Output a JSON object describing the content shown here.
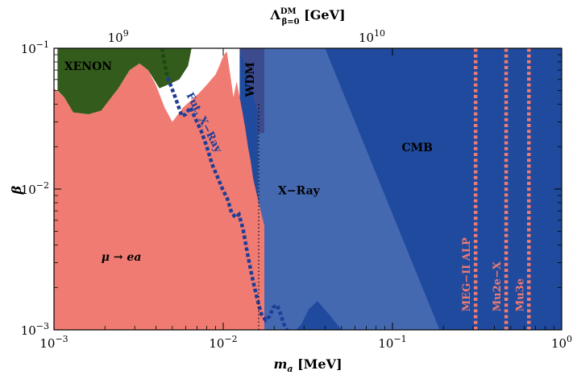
{
  "chart_data": {
    "type": "area",
    "x_axis": {
      "label": "m_a [MeV]",
      "label_main": "m",
      "label_sub": "a",
      "label_unit": " [MeV]",
      "scale": "log",
      "range": [
        0.001,
        1
      ],
      "ticks": [
        0.001,
        0.01,
        0.1,
        1
      ],
      "tick_labels": [
        {
          "base": "10",
          "exp": "−3"
        },
        {
          "base": "10",
          "exp": "−2"
        },
        {
          "base": "10",
          "exp": "−1"
        },
        {
          "base": "10",
          "exp": "0"
        }
      ]
    },
    "top_axis": {
      "label": "Λ^DM_{β=0} [GeV]",
      "label_main": "Λ",
      "label_sup": "DM",
      "label_sub": "β=0",
      "label_unit": " [GeV]",
      "scale": "log",
      "ticks": [
        {
          "m": 0.0021,
          "base": "10",
          "exp": "9"
        },
        {
          "m": 0.0663,
          "base": "10",
          "exp": "10"
        }
      ]
    },
    "y_axis": {
      "label": "β",
      "scale": "log",
      "range": [
        0.001,
        0.1
      ],
      "ticks": [
        0.001,
        0.01,
        0.1
      ],
      "tick_labels": [
        {
          "base": "10",
          "exp": "−3"
        },
        {
          "base": "10",
          "exp": "−2"
        },
        {
          "base": "10",
          "exp": "−1"
        }
      ]
    },
    "regions": [
      {
        "name": "CMB",
        "label": "CMB",
        "color": "#1f4a9d",
        "label_color": "#000000",
        "label_at": {
          "m": 0.14,
          "b": 0.0185
        },
        "boundary": [
          [
            0.0125,
            0.1
          ],
          [
            1,
            0.1
          ],
          [
            1,
            0.001
          ],
          [
            0.0125,
            0.001
          ]
        ]
      },
      {
        "name": "X-Ray",
        "label": "X−Ray",
        "color": "#4469b1",
        "label_color": "#000000",
        "label_at": {
          "m": 0.028,
          "b": 0.0092
        },
        "boundary": [
          [
            0.0125,
            0.1
          ],
          [
            0.0245,
            0.1
          ],
          [
            0.04,
            0.1
          ],
          [
            0.19,
            0.001
          ],
          [
            0.05,
            0.001
          ],
          [
            0.042,
            0.0013
          ],
          [
            0.036,
            0.0016
          ],
          [
            0.032,
            0.0014
          ],
          [
            0.029,
            0.0011
          ],
          [
            0.027,
            0.001
          ],
          [
            0.016,
            0.001
          ],
          [
            0.016,
            0.035
          ]
        ]
      },
      {
        "name": "WDM",
        "label": "WDM",
        "color": "#3c4a8e",
        "label_color": "#000000",
        "label_at": {
          "m": 0.0152,
          "b": 0.06
        },
        "boundary": [
          [
            0.0125,
            0.1
          ],
          [
            0.0175,
            0.1
          ],
          [
            0.0175,
            0.025
          ],
          [
            0.016,
            0.025
          ],
          [
            0.016,
            0.035
          ]
        ]
      },
      {
        "name": "μ → ea",
        "label": "μ → ea",
        "color": "#f07b72",
        "label_color": "#000000",
        "label_at": {
          "m": 0.0025,
          "b": 0.0031
        },
        "boundary": [
          [
            0.001,
            0.001
          ],
          [
            0.001,
            0.052
          ],
          [
            0.00115,
            0.045
          ],
          [
            0.0013,
            0.035
          ],
          [
            0.0016,
            0.034
          ],
          [
            0.0019,
            0.036
          ],
          [
            0.0024,
            0.052
          ],
          [
            0.0028,
            0.07
          ],
          [
            0.0032,
            0.078
          ],
          [
            0.0036,
            0.07
          ],
          [
            0.004,
            0.055
          ],
          [
            0.0045,
            0.038
          ],
          [
            0.005,
            0.03
          ],
          [
            0.0058,
            0.038
          ],
          [
            0.0065,
            0.043
          ],
          [
            0.0072,
            0.048
          ],
          [
            0.008,
            0.055
          ],
          [
            0.009,
            0.065
          ],
          [
            0.0095,
            0.075
          ],
          [
            0.01,
            0.088
          ],
          [
            0.0105,
            0.095
          ],
          [
            0.011,
            0.065
          ],
          [
            0.0115,
            0.045
          ],
          [
            0.012,
            0.058
          ],
          [
            0.0125,
            0.045
          ],
          [
            0.013,
            0.035
          ],
          [
            0.0135,
            0.027
          ],
          [
            0.014,
            0.02
          ],
          [
            0.0145,
            0.016
          ],
          [
            0.015,
            0.012
          ],
          [
            0.016,
            0.0085
          ],
          [
            0.0175,
            0.0055
          ],
          [
            0.0175,
            0.001
          ]
        ]
      },
      {
        "name": "XENON",
        "label": "XENON",
        "color": "#335b1c",
        "label_color": "#000000",
        "label_at": {
          "m": 0.00115,
          "b": 0.07
        },
        "boundary": [
          [
            0.00105,
            0.1
          ],
          [
            0.0065,
            0.1
          ],
          [
            0.0062,
            0.075
          ],
          [
            0.0055,
            0.06
          ],
          [
            0.0047,
            0.055
          ],
          [
            0.0042,
            0.052
          ],
          [
            0.0036,
            0.07
          ],
          [
            0.0032,
            0.078
          ],
          [
            0.0028,
            0.07
          ],
          [
            0.0024,
            0.052
          ],
          [
            0.0019,
            0.036
          ],
          [
            0.0016,
            0.034
          ],
          [
            0.0013,
            0.035
          ],
          [
            0.00115,
            0.045
          ],
          [
            0.00105,
            0.05
          ]
        ]
      }
    ],
    "lines": [
      {
        "name": "Fut. X-Ray",
        "label": "Fut. X−Ray",
        "color": "#1f3d96",
        "style": "dotted-thick",
        "label_at": {
          "m": 0.0074,
          "b": 0.029
        },
        "label_angle": 63,
        "points": [
          [
            0.0047,
            0.062
          ],
          [
            0.0052,
            0.045
          ],
          [
            0.0057,
            0.033
          ],
          [
            0.006,
            0.034
          ],
          [
            0.0064,
            0.038
          ],
          [
            0.0069,
            0.031
          ],
          [
            0.0074,
            0.026
          ],
          [
            0.008,
            0.02
          ],
          [
            0.0086,
            0.015
          ],
          [
            0.0093,
            0.012
          ],
          [
            0.0099,
            0.01
          ],
          [
            0.0106,
            0.0085
          ],
          [
            0.0112,
            0.0068
          ],
          [
            0.0118,
            0.0063
          ],
          [
            0.0124,
            0.0066
          ],
          [
            0.0131,
            0.0052
          ],
          [
            0.0139,
            0.0035
          ],
          [
            0.0146,
            0.0026
          ],
          [
            0.0153,
            0.002
          ],
          [
            0.016,
            0.0016
          ],
          [
            0.0168,
            0.0013
          ],
          [
            0.0178,
            0.00117
          ],
          [
            0.0188,
            0.00125
          ],
          [
            0.0198,
            0.00145
          ],
          [
            0.0208,
            0.0015
          ],
          [
            0.0218,
            0.0013
          ],
          [
            0.0228,
            0.0011
          ],
          [
            0.0238,
            0.001
          ]
        ]
      },
      {
        "name": "XENON-future",
        "label": "",
        "color": "#1c4a12",
        "style": "dotted-thick",
        "points": [
          [
            0.00435,
            0.1
          ],
          [
            0.0045,
            0.078
          ],
          [
            0.0047,
            0.062
          ]
        ]
      },
      {
        "name": "WDM",
        "label": "",
        "color": "#000000",
        "style": "dotted-thin",
        "points": [
          [
            0.0162,
            0.001
          ],
          [
            0.0162,
            0.04
          ]
        ]
      },
      {
        "name": "MEG-II ALP",
        "label": "MEG−II ALP",
        "color": "#f07b72",
        "style": "dotted-vertical",
        "x": 0.31,
        "label_angle": -90,
        "label_at": {
          "m": 0.31,
          "b": 0.00135
        }
      },
      {
        "name": "Mu2e-X",
        "label": "Mu2e−X",
        "color": "#f07b72",
        "style": "dotted-vertical",
        "x": 0.47,
        "label_angle": -90,
        "label_at": {
          "m": 0.47,
          "b": 0.00135
        }
      },
      {
        "name": "Mu3e",
        "label": "Mu3e",
        "color": "#f07b72",
        "style": "dotted-vertical",
        "x": 0.64,
        "label_angle": -90,
        "label_at": {
          "m": 0.64,
          "b": 0.00135
        }
      }
    ],
    "grid": false,
    "legend": "none"
  }
}
